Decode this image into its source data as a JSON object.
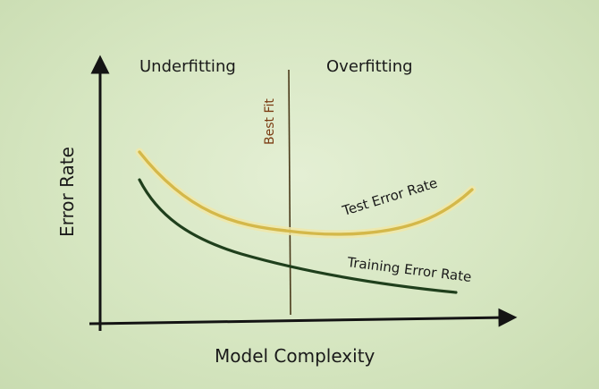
{
  "diagram": {
    "region_left_label": "Underfitting",
    "region_right_label": "Overfitting",
    "divider_label": "Best Fit",
    "y_axis_label": "Error Rate",
    "x_axis_label": "Model Complexity",
    "test_curve_label": "Test Error Rate",
    "training_curve_label": "Training Error Rate"
  },
  "colors": {
    "background": "#d6e6c1",
    "axis": "#141414",
    "test_curve": "#d4b84a",
    "test_curve_glow": "#f0e7a8",
    "training_curve": "#1f3f1c",
    "divider": "#4a3a1a",
    "bestfit_text": "#7a3b12"
  }
}
